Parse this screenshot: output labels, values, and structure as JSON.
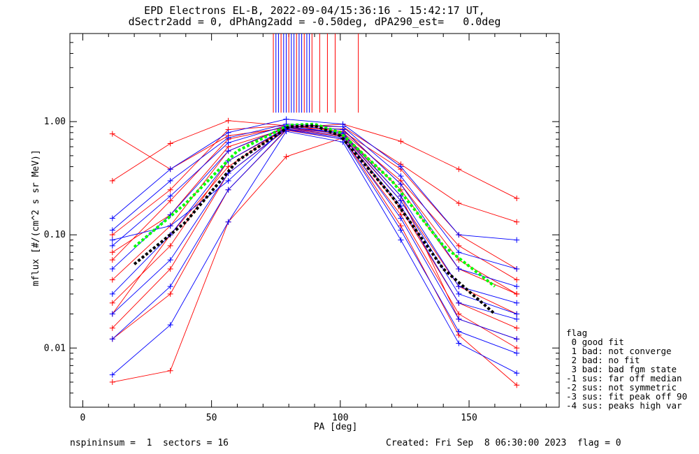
{
  "title_line1": "EPD Electrons EL-B, 2022-09-04/15:36:16 - 15:42:17 UT,",
  "title_line2": "dSectr2add = 0, dPhAng2add = -0.50deg, dPA290_est=   0.0deg",
  "footer_left": "nspininsum =  1  sectors = 16",
  "footer_right": "Created: Fri Sep  8 06:30:00 2023  flag = 0",
  "legend": {
    "title": "flag",
    "items": [
      " 0 good fit",
      " 1 bad: not converge",
      " 2 bad: no fit",
      " 3 bad: bad fgm state",
      "-1 sus: far off median",
      "-2 sus: not symmetric",
      "-3 sus: fit peak off 90",
      "-4 sus: peaks high var"
    ]
  },
  "chart_data": {
    "type": "line",
    "title": "EPD Electrons EL-B, 2022-09-04/15:36:16 - 15:42:17 UT, dSectr2add = 0, dPhAng2add = -0.50deg, dPA290_est=   0.0deg",
    "xlabel": "PA [deg]",
    "ylabel": "mflux [#/(cm^2 s sr MeV)]",
    "xlim": [
      -5,
      185
    ],
    "ylim": [
      0.003,
      6.0
    ],
    "yscale": "log",
    "grid": false,
    "xticks": [
      0,
      50,
      100,
      150
    ],
    "xtick_labels": [
      "0",
      "50",
      "100",
      "150"
    ],
    "yticks": [
      0.01,
      0.1,
      1.0
    ],
    "ytick_labels": [
      "0.01",
      "0.10",
      "1.00"
    ],
    "pa_bins": [
      11.5,
      34,
      56.5,
      79,
      101,
      123.5,
      146,
      168.5
    ],
    "series": [
      {
        "color": "#ff0000",
        "marker": "+",
        "values": [
          0.78,
          0.38,
          0.75,
          0.88,
          0.95,
          0.67,
          0.38,
          0.21
        ]
      },
      {
        "color": "#ff0000",
        "marker": "+",
        "values": [
          0.3,
          0.64,
          1.02,
          0.92,
          0.9,
          0.42,
          0.19,
          0.13
        ]
      },
      {
        "color": "#ff0000",
        "marker": "+",
        "values": [
          0.1,
          0.25,
          0.85,
          0.92,
          0.82,
          0.38,
          0.1,
          0.05
        ]
      },
      {
        "color": "#ff0000",
        "marker": "+",
        "values": [
          0.06,
          0.2,
          0.7,
          0.9,
          0.8,
          0.3,
          0.08,
          0.04
        ]
      },
      {
        "color": "#ff0000",
        "marker": "+",
        "values": [
          0.04,
          0.12,
          0.55,
          0.88,
          0.78,
          0.25,
          0.05,
          0.03
        ]
      },
      {
        "color": "#ff0000",
        "marker": "+",
        "values": [
          0.025,
          0.08,
          0.45,
          0.86,
          0.76,
          0.2,
          0.035,
          0.02
        ]
      },
      {
        "color": "#ff0000",
        "marker": "+",
        "values": [
          0.015,
          0.05,
          0.35,
          0.85,
          0.74,
          0.17,
          0.025,
          0.015
        ]
      },
      {
        "color": "#ff0000",
        "marker": "+",
        "values": [
          0.005,
          0.0063,
          0.13,
          0.49,
          0.72,
          0.12,
          0.013,
          0.0047
        ]
      },
      {
        "color": "#ff0000",
        "marker": "+",
        "values": [
          0.012,
          0.03,
          0.25,
          0.84,
          0.7,
          0.15,
          0.02,
          0.01
        ]
      },
      {
        "color": "#ff0000",
        "marker": "+",
        "values": [
          0.07,
          0.15,
          0.6,
          0.87,
          0.86,
          0.28,
          0.06,
          0.03
        ]
      },
      {
        "color": "#ff0000",
        "marker": "+",
        "values": [
          0.02,
          0.1,
          0.4,
          0.88,
          0.78,
          0.22,
          0.018,
          0.012
        ]
      },
      {
        "color": "#0000ff",
        "marker": "+",
        "values": [
          0.14,
          0.38,
          0.8,
          1.05,
          0.95,
          0.4,
          0.1,
          0.09
        ]
      },
      {
        "color": "#0000ff",
        "marker": "+",
        "values": [
          0.11,
          0.3,
          0.72,
          0.95,
          0.9,
          0.33,
          0.07,
          0.05
        ]
      },
      {
        "color": "#0000ff",
        "marker": "+",
        "values": [
          0.08,
          0.22,
          0.65,
          0.92,
          0.85,
          0.28,
          0.05,
          0.035
        ]
      },
      {
        "color": "#0000ff",
        "marker": "+",
        "values": [
          0.05,
          0.15,
          0.55,
          0.9,
          0.8,
          0.22,
          0.035,
          0.025
        ]
      },
      {
        "color": "#0000ff",
        "marker": "+",
        "values": [
          0.03,
          0.1,
          0.45,
          0.88,
          0.75,
          0.18,
          0.025,
          0.018
        ]
      },
      {
        "color": "#0000ff",
        "marker": "+",
        "values": [
          0.02,
          0.06,
          0.35,
          0.86,
          0.72,
          0.14,
          0.018,
          0.012
        ]
      },
      {
        "color": "#0000ff",
        "marker": "+",
        "values": [
          0.012,
          0.035,
          0.25,
          0.85,
          0.7,
          0.11,
          0.014,
          0.009
        ]
      },
      {
        "color": "#0000ff",
        "marker": "+",
        "values": [
          0.0058,
          0.016,
          0.13,
          0.82,
          0.66,
          0.09,
          0.011,
          0.006
        ]
      },
      {
        "color": "#0000ff",
        "marker": "+",
        "values": [
          0.09,
          0.12,
          0.3,
          0.9,
          0.78,
          0.2,
          0.03,
          0.02
        ]
      }
    ],
    "fits": [
      {
        "color": "#00ff00",
        "style": "dashed",
        "x": [
          20,
          40,
          60,
          80,
          90,
          100,
          120,
          140,
          160
        ],
        "values": [
          0.078,
          0.19,
          0.55,
          0.93,
          0.95,
          0.8,
          0.3,
          0.08,
          0.035
        ]
      },
      {
        "color": "#000000",
        "style": "dashed",
        "x": [
          20,
          40,
          60,
          80,
          90,
          100,
          120,
          140,
          160
        ],
        "values": [
          0.055,
          0.13,
          0.45,
          0.9,
          0.92,
          0.75,
          0.22,
          0.05,
          0.02
        ]
      }
    ],
    "peak_markers": {
      "red": [
        74,
        77,
        80,
        83,
        86,
        89,
        92,
        95,
        98,
        107
      ],
      "blue": [
        75,
        76,
        78,
        79,
        81,
        82,
        84,
        85,
        87,
        88
      ]
    }
  }
}
